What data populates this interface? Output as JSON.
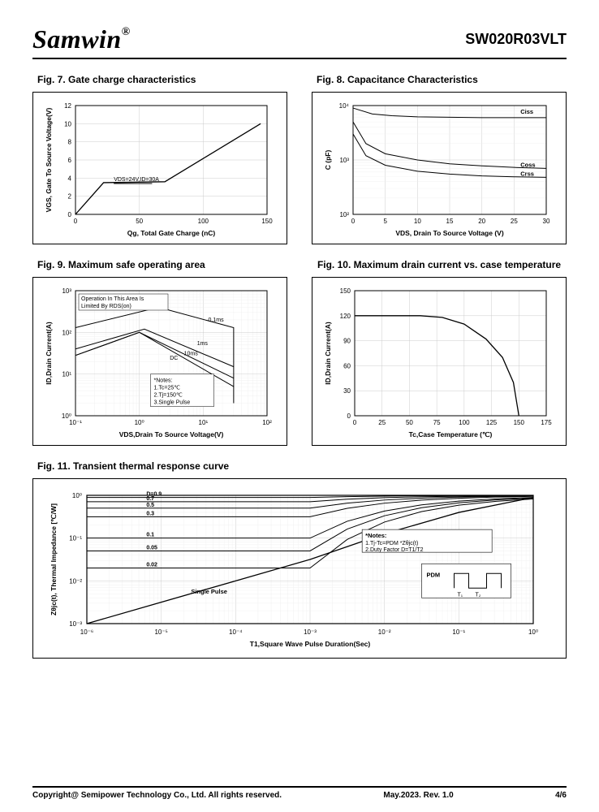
{
  "header": {
    "brand": "Samwin",
    "reg": "®",
    "part_number": "SW020R03VLT"
  },
  "fig7": {
    "title": "Fig. 7. Gate charge characteristics",
    "type": "line",
    "xlabel": "Qg, Total Gate Charge (nC)",
    "ylabel": "VGS, Gate To Source Voltage(V)",
    "xlim": [
      0,
      150
    ],
    "xticks": [
      0,
      50,
      100,
      150
    ],
    "ylim": [
      0,
      12
    ],
    "yticks": [
      0,
      2,
      4,
      6,
      8,
      10,
      12
    ],
    "annotation": "VDS=24V,ID=30A",
    "points": [
      [
        0,
        0
      ],
      [
        22,
        3.5
      ],
      [
        70,
        3.6
      ],
      [
        145,
        10
      ]
    ],
    "grid_color": "#e5e5e5",
    "line_color": "#000000"
  },
  "fig8": {
    "title": "Fig. 8. Capacitance Characteristics",
    "type": "line-log-y",
    "xlabel": "VDS, Drain To Source Voltage (V)",
    "ylabel": "C (pF)",
    "xlim": [
      0,
      30
    ],
    "xticks": [
      0,
      5,
      10,
      15,
      20,
      25,
      30
    ],
    "ylim": [
      100,
      10000
    ],
    "yticks": [
      "10²",
      "10³",
      "10⁴"
    ],
    "series": [
      {
        "label": "Ciss",
        "points": [
          [
            0,
            9000
          ],
          [
            3,
            7000
          ],
          [
            6,
            6500
          ],
          [
            10,
            6200
          ],
          [
            15,
            6100
          ],
          [
            20,
            6000
          ],
          [
            25,
            6000
          ],
          [
            30,
            6000
          ]
        ]
      },
      {
        "label": "Coss",
        "points": [
          [
            0,
            5000
          ],
          [
            2,
            2000
          ],
          [
            5,
            1300
          ],
          [
            10,
            1000
          ],
          [
            15,
            850
          ],
          [
            20,
            780
          ],
          [
            25,
            730
          ],
          [
            30,
            700
          ]
        ]
      },
      {
        "label": "Crss",
        "points": [
          [
            0,
            3000
          ],
          [
            2,
            1200
          ],
          [
            5,
            800
          ],
          [
            10,
            620
          ],
          [
            15,
            550
          ],
          [
            20,
            510
          ],
          [
            25,
            490
          ],
          [
            30,
            480
          ]
        ]
      }
    ],
    "grid_color": "#e5e5e5"
  },
  "fig9": {
    "title": "Fig. 9. Maximum safe operating area",
    "type": "line-loglog",
    "xlabel": "VDS,Drain To Source Voltage(V)",
    "ylabel": "ID,Drain Current(A)",
    "xlim": [
      0.1,
      100
    ],
    "xticks": [
      "10⁻¹",
      "10⁰",
      "10¹",
      "10²"
    ],
    "ylim": [
      1,
      1000
    ],
    "yticks": [
      "10⁰",
      "10¹",
      "10²",
      "10³"
    ],
    "note_title": "*Notes:",
    "notes": [
      "1.Tc=25℃",
      "2.Tj=150℃",
      "3.Single Pulse"
    ],
    "top_anno": "Operation In This Area Is Limited By RDS(on)",
    "curves": [
      {
        "label": "0.1ms",
        "points": [
          [
            0.1,
            130
          ],
          [
            2,
            400
          ],
          [
            30,
            130
          ],
          [
            30,
            2
          ]
        ]
      },
      {
        "label": "1ms",
        "points": [
          [
            0.1,
            40
          ],
          [
            1.2,
            120
          ],
          [
            30,
            15
          ]
        ]
      },
      {
        "label": "10ms",
        "points": [
          [
            0.1,
            28
          ],
          [
            1,
            100
          ],
          [
            30,
            8
          ]
        ]
      },
      {
        "label": "DC",
        "points": [
          [
            0.1,
            28
          ],
          [
            1,
            100
          ],
          [
            30,
            5
          ]
        ]
      }
    ]
  },
  "fig10": {
    "title": "Fig. 10. Maximum drain current vs. case temperature",
    "type": "line",
    "xlabel": "Tc,Case Temperature (℃)",
    "ylabel": "ID,Drain Current(A)",
    "xlim": [
      0,
      175
    ],
    "xticks": [
      0,
      25,
      50,
      75,
      100,
      125,
      150,
      175
    ],
    "ylim": [
      0,
      150
    ],
    "yticks": [
      0,
      30,
      60,
      90,
      120,
      150
    ],
    "points": [
      [
        0,
        120
      ],
      [
        25,
        120
      ],
      [
        60,
        120
      ],
      [
        80,
        118
      ],
      [
        100,
        110
      ],
      [
        120,
        92
      ],
      [
        135,
        70
      ],
      [
        145,
        40
      ],
      [
        150,
        0
      ]
    ]
  },
  "fig11": {
    "title": "Fig. 11. Transient thermal response curve",
    "type": "line-loglog",
    "xlabel": "T1,Square Wave Pulse Duration(Sec)",
    "ylabel": "Zθjc(t), Thermal Impedance [℃/W]",
    "xlim_exp": [
      -6,
      0
    ],
    "ylim_exp": [
      -3,
      0
    ],
    "xticks": [
      "10⁻⁶",
      "10⁻⁵",
      "10⁻⁴",
      "10⁻³",
      "10⁻²",
      "10⁻¹",
      "10⁰"
    ],
    "yticks": [
      "10⁻³",
      "10⁻²",
      "10⁻¹",
      "10⁰"
    ],
    "series_labels": [
      "D=0.9",
      "0.7",
      "0.5",
      "0.3",
      "0.1",
      "0.05",
      "0.02",
      "Single Pulse"
    ],
    "note_title": "*Notes:",
    "notes": [
      "1.Tj-Tc=PDM *Zθjc(t)",
      "2.Duty Factor D=T1/T2"
    ],
    "pdm_label": "PDM",
    "t1_label": "T₁",
    "t2_label": "T₂",
    "series_offsets_log": [
      -0.05,
      -0.15,
      -0.3,
      -0.5,
      -1.0,
      -1.3,
      -1.7
    ],
    "single_pulse_points_exp": [
      [
        -6,
        -3
      ],
      [
        -5,
        -2.5
      ],
      [
        -4,
        -2.0
      ],
      [
        -3,
        -1.5
      ],
      [
        -2,
        -0.9
      ],
      [
        -1,
        -0.4
      ],
      [
        0,
        -0.05
      ]
    ]
  },
  "footer": {
    "copyright": "Copyright@ Semipower Technology Co., Ltd. All rights reserved.",
    "date": "May.2023. Rev. 1.0",
    "page": "4/6"
  }
}
